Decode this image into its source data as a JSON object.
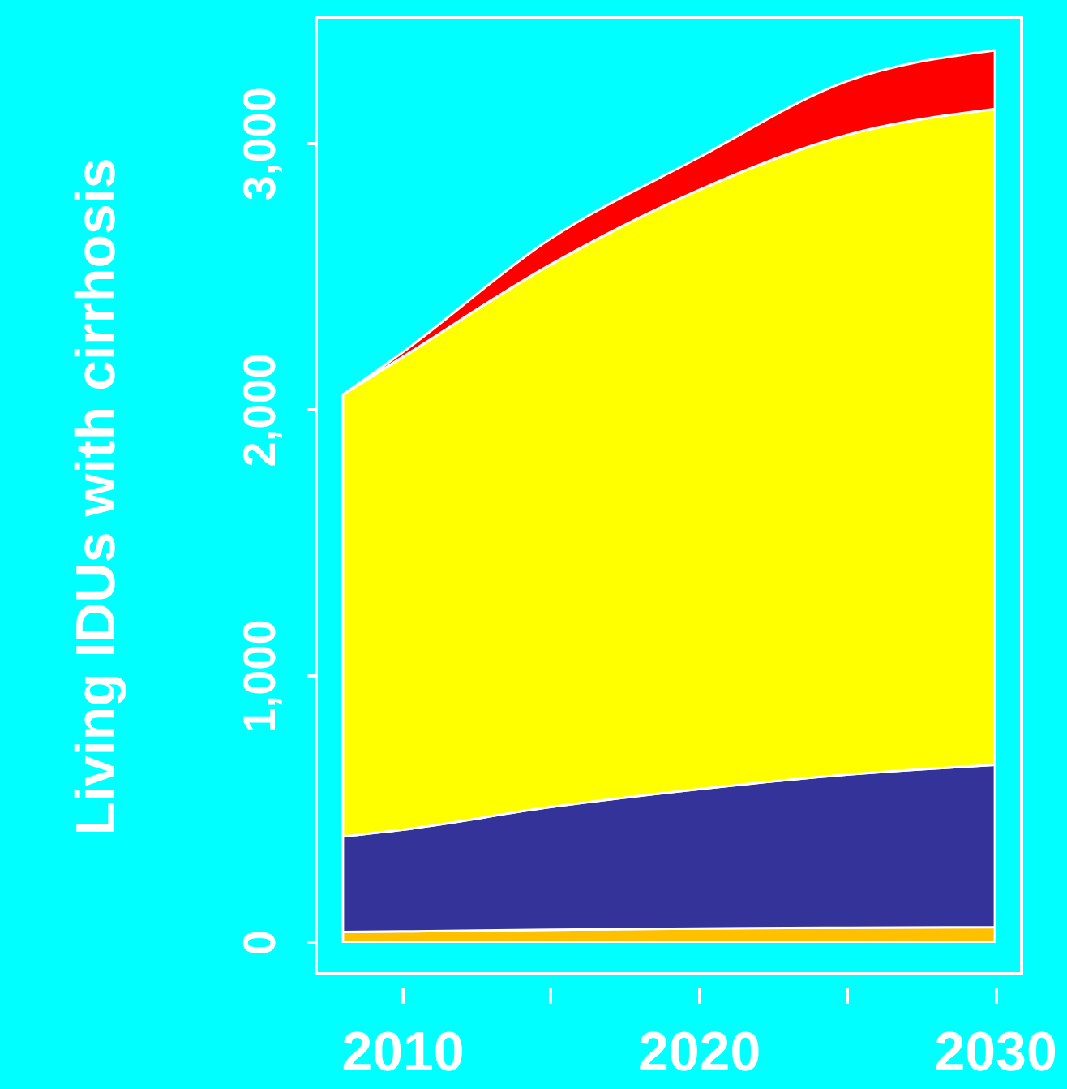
{
  "chart_data": {
    "type": "area",
    "stacked": true,
    "ylabel": "Living IDUs with cirrhosis",
    "x": [
      2008,
      2010,
      2015,
      2020,
      2025,
      2030
    ],
    "series": [
      {
        "color": "#ffc000",
        "values": [
          37,
          39,
          45,
          50,
          53,
          55
        ]
      },
      {
        "color": "#333399",
        "values": [
          359,
          382,
          461,
          523,
          575,
          610
        ]
      },
      {
        "color": "#ffff00",
        "values": [
          1659,
          1774,
          2037,
          2250,
          2402,
          2463
        ]
      },
      {
        "color": "#ff0000",
        "values": [
          0,
          18,
          97,
          122,
          202,
          220
        ]
      }
    ],
    "xlim": [
      2007.1,
      2030.9
    ],
    "ylim": [
      -120,
      3470
    ],
    "xticks": [
      2010,
      {
        "value": 2015,
        "label": null
      },
      2020,
      {
        "value": 2025,
        "label": null
      },
      2030
    ],
    "yticks": [
      0,
      {
        "value": 1000,
        "label": "1,000"
      },
      {
        "value": 2000,
        "label": "2,000"
      },
      {
        "value": 3000,
        "label": "3,000"
      }
    ],
    "grid": false
  }
}
